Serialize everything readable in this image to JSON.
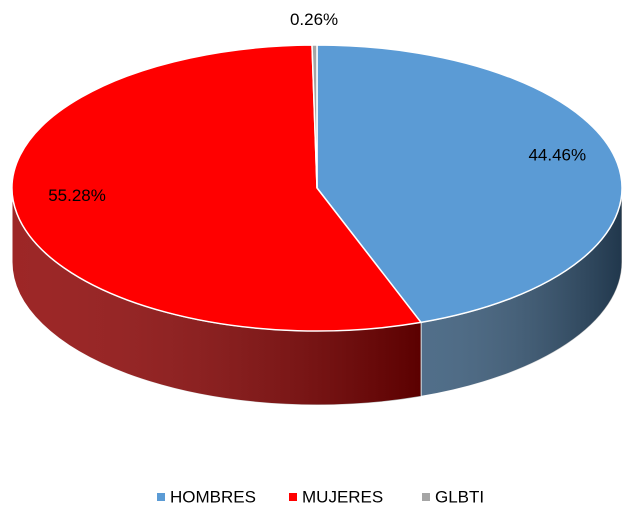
{
  "chart_data": {
    "type": "pie3d",
    "categories": [
      "HOMBRES",
      "MUJERES",
      "GLBTI"
    ],
    "series": [
      {
        "values": [
          44.46,
          55.28,
          0.26
        ],
        "value_labels": [
          "44.46%",
          "55.28%",
          "0.26%"
        ],
        "colors": [
          "#5b9bd5",
          "#ff0000",
          "#a5a5a5"
        ]
      }
    ],
    "legend": "bottom"
  }
}
